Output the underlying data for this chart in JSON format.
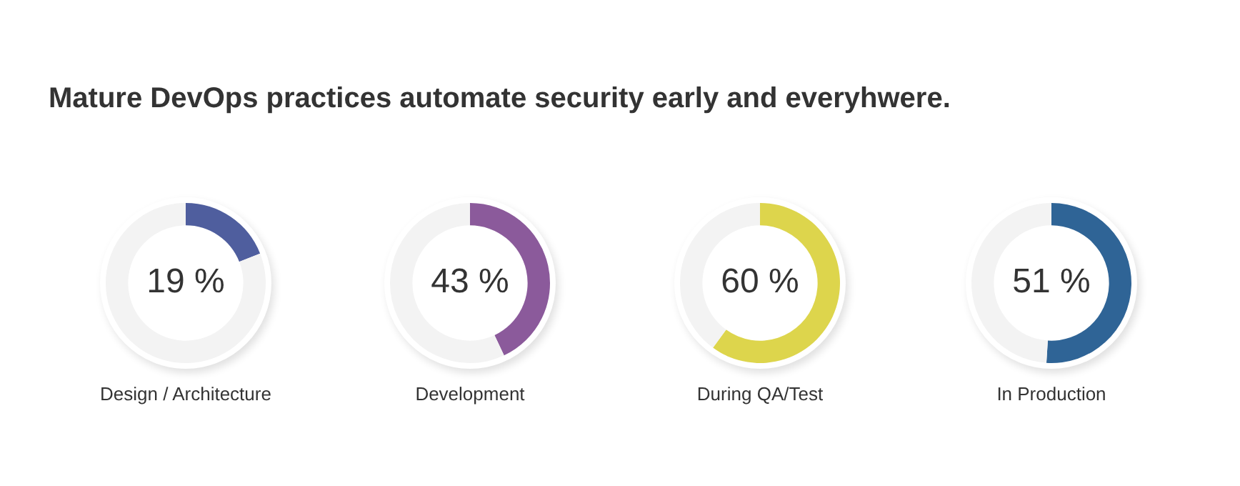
{
  "chart_data": [
    {
      "type": "other",
      "title": "Mature DevOps practices automate security early and everyhwere."
    },
    {
      "type": "donut",
      "title": "Design / Architecture",
      "categories": [
        null,
        null
      ],
      "values": [
        19,
        81
      ],
      "colors": [
        "#4f5e9e",
        "#f3f3f3"
      ],
      "value_labels": [
        "19 %",
        null
      ]
    },
    {
      "type": "donut",
      "title": "Development",
      "categories": [
        null,
        null
      ],
      "values": [
        43,
        57
      ],
      "colors": [
        "#8b5a9b",
        "#f3f3f3"
      ],
      "value_labels": [
        "43 %",
        null
      ]
    },
    {
      "type": "donut",
      "title": "During QA/Test",
      "categories": [
        null,
        null
      ],
      "values": [
        60,
        40
      ],
      "colors": [
        "#ddd54c",
        "#f3f3f3"
      ],
      "value_labels": [
        "60 %",
        null
      ]
    },
    {
      "type": "donut",
      "title": "In Production",
      "categories": [
        null,
        null
      ],
      "values": [
        51,
        49
      ],
      "colors": [
        "#2f6496",
        "#f3f3f3"
      ],
      "value_labels": [
        "51 %",
        null
      ]
    }
  ]
}
